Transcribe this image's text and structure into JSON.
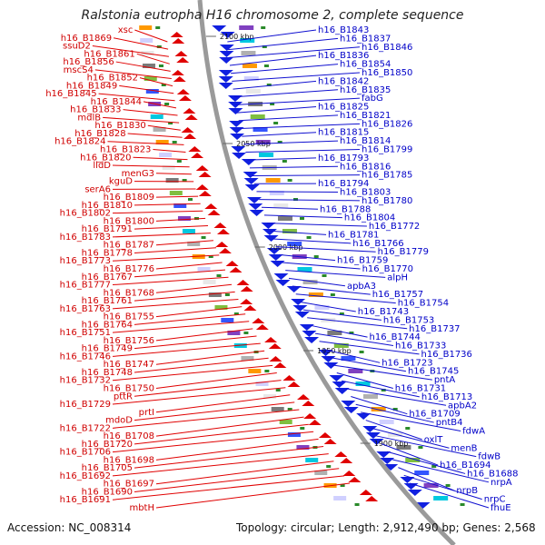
{
  "title": "Ralstonia eutropha H16 chromosome 2, complete sequence",
  "footer": {
    "accession": "Accession: NC_008314",
    "summary": "Topology: circular; Length: 2,912,490 bp; Genes: 2,568"
  },
  "colors": {
    "left_labels": "#d00000",
    "right_labels": "#0000c8",
    "backbone": "#9a9a9a"
  },
  "backbone_labels": [
    "2100 kbp",
    "2050 kbp",
    "2000 kbp",
    "1950 kbp",
    "1900 kbp"
  ],
  "left_labels": [
    "xsc",
    "h16_B1869",
    "ssuD2",
    "h16_B1861",
    "h16_B1856",
    "mscS4",
    "h16_B1852",
    "h16_B1849",
    "h16_B1845",
    "h16_B1844",
    "h16_B1833",
    "mdlB",
    "h16_B1830",
    "h16_B1828",
    "h16_B1824",
    "h16_B1823",
    "h16_B1820",
    "lldD",
    "menG3",
    "kguD",
    "serA6",
    "h16_B1809",
    "h16_B1810",
    "h16_B1802",
    "h16_B1800",
    "h16_B1791",
    "h16_B1783",
    "h16_B1787",
    "h16_B1778",
    "h16_B1773",
    "h16_B1776",
    "h16_B1767",
    "h16_B1777",
    "h16_B1768",
    "h16_B1761",
    "h16_B1763",
    "h16_B1755",
    "h16_B1764",
    "h16_B1751",
    "h16_B1756",
    "h16_B1749",
    "h16_B1746",
    "h16_B1747",
    "h16_B1748",
    "h16_B1732",
    "h16_B1750",
    "pttR",
    "h16_B1729",
    "prtI",
    "mdoD",
    "h16_B1722",
    "h16_B1708",
    "h16_B1720",
    "h16_B1706",
    "h16_B1698",
    "h16_B1705",
    "h16_B1692",
    "h16_B1697",
    "h16_B1690",
    "h16_B1691",
    "mbtH"
  ],
  "right_labels": [
    "h16_B1843",
    "h16_B1837",
    "h16_B1846",
    "h16_B1836",
    "h16_B1854",
    "h16_B1850",
    "h16_B1842",
    "h16_B1835",
    "fabG",
    "h16_B1825",
    "h16_B1821",
    "h16_B1826",
    "h16_B1815",
    "h16_B1814",
    "h16_B1799",
    "h16_B1793",
    "h16_B1816",
    "h16_B1785",
    "h16_B1794",
    "h16_B1803",
    "h16_B1780",
    "h16_B1788",
    "h16_B1804",
    "h16_B1772",
    "h16_B1781",
    "h16_B1766",
    "h16_B1779",
    "h16_B1759",
    "h16_B1770",
    "alpH",
    "apbA3",
    "h16_B1757",
    "h16_B1754",
    "h16_B1743",
    "h16_B1753",
    "h16_B1737",
    "h16_B1744",
    "h16_B1733",
    "h16_B1736",
    "h16_B1723",
    "h16_B1745",
    "pntA",
    "h16_B1731",
    "h16_B1713",
    "apbA2",
    "h16_B1709",
    "pntB4",
    "fdwA",
    "oxlT",
    "menB",
    "fdwB",
    "h16_B1694",
    "h16_B1688",
    "nrpA",
    "nrpB",
    "nrpC",
    "fhuE"
  ]
}
